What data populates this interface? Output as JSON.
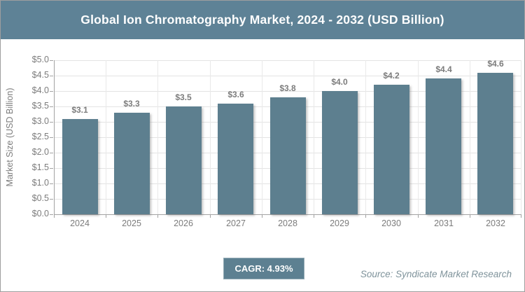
{
  "header": {
    "title": "Global Ion Chromatography Market, 2024 - 2032 (USD Billion)",
    "background_color": "#5e8296"
  },
  "chart_data": {
    "type": "bar",
    "title": "Global Ion Chromatography Market, 2024 - 2032 (USD Billion)",
    "categories": [
      "2024",
      "2025",
      "2026",
      "2027",
      "2028",
      "2029",
      "2030",
      "2031",
      "2032"
    ],
    "values": [
      3.1,
      3.3,
      3.5,
      3.6,
      3.8,
      4.0,
      4.2,
      4.4,
      4.6
    ],
    "value_labels": [
      "$3.1",
      "$3.3",
      "$3.5",
      "$3.6",
      "$3.8",
      "$4.0",
      "$4.2",
      "$4.4",
      "$4.6"
    ],
    "xlabel": "",
    "ylabel": "Market Size (USD Billion)",
    "ylim": [
      0,
      5
    ],
    "ytick_step": 0.5,
    "ytick_labels_top_down": [
      "$5.0",
      "$4.5",
      "$4.0",
      "$3.5",
      "$3.0",
      "$2.5",
      "$2.0",
      "$1.5",
      "$1.0",
      "$0.5",
      "$0.0"
    ],
    "grid": true,
    "legend": "none",
    "bar_color": "#5d7f8f"
  },
  "footer": {
    "cagr_label": "CAGR: 4.93%",
    "source": "Source: Syndicate Market Research"
  },
  "colors": {
    "header_bg": "#5e8296",
    "bar": "#5d7f8f",
    "badge_bg": "#5d8091",
    "grid": "#e3e3e3",
    "axis": "#a3a3a3",
    "tick_text": "#7c7c7c",
    "source_text": "#7f939b"
  }
}
